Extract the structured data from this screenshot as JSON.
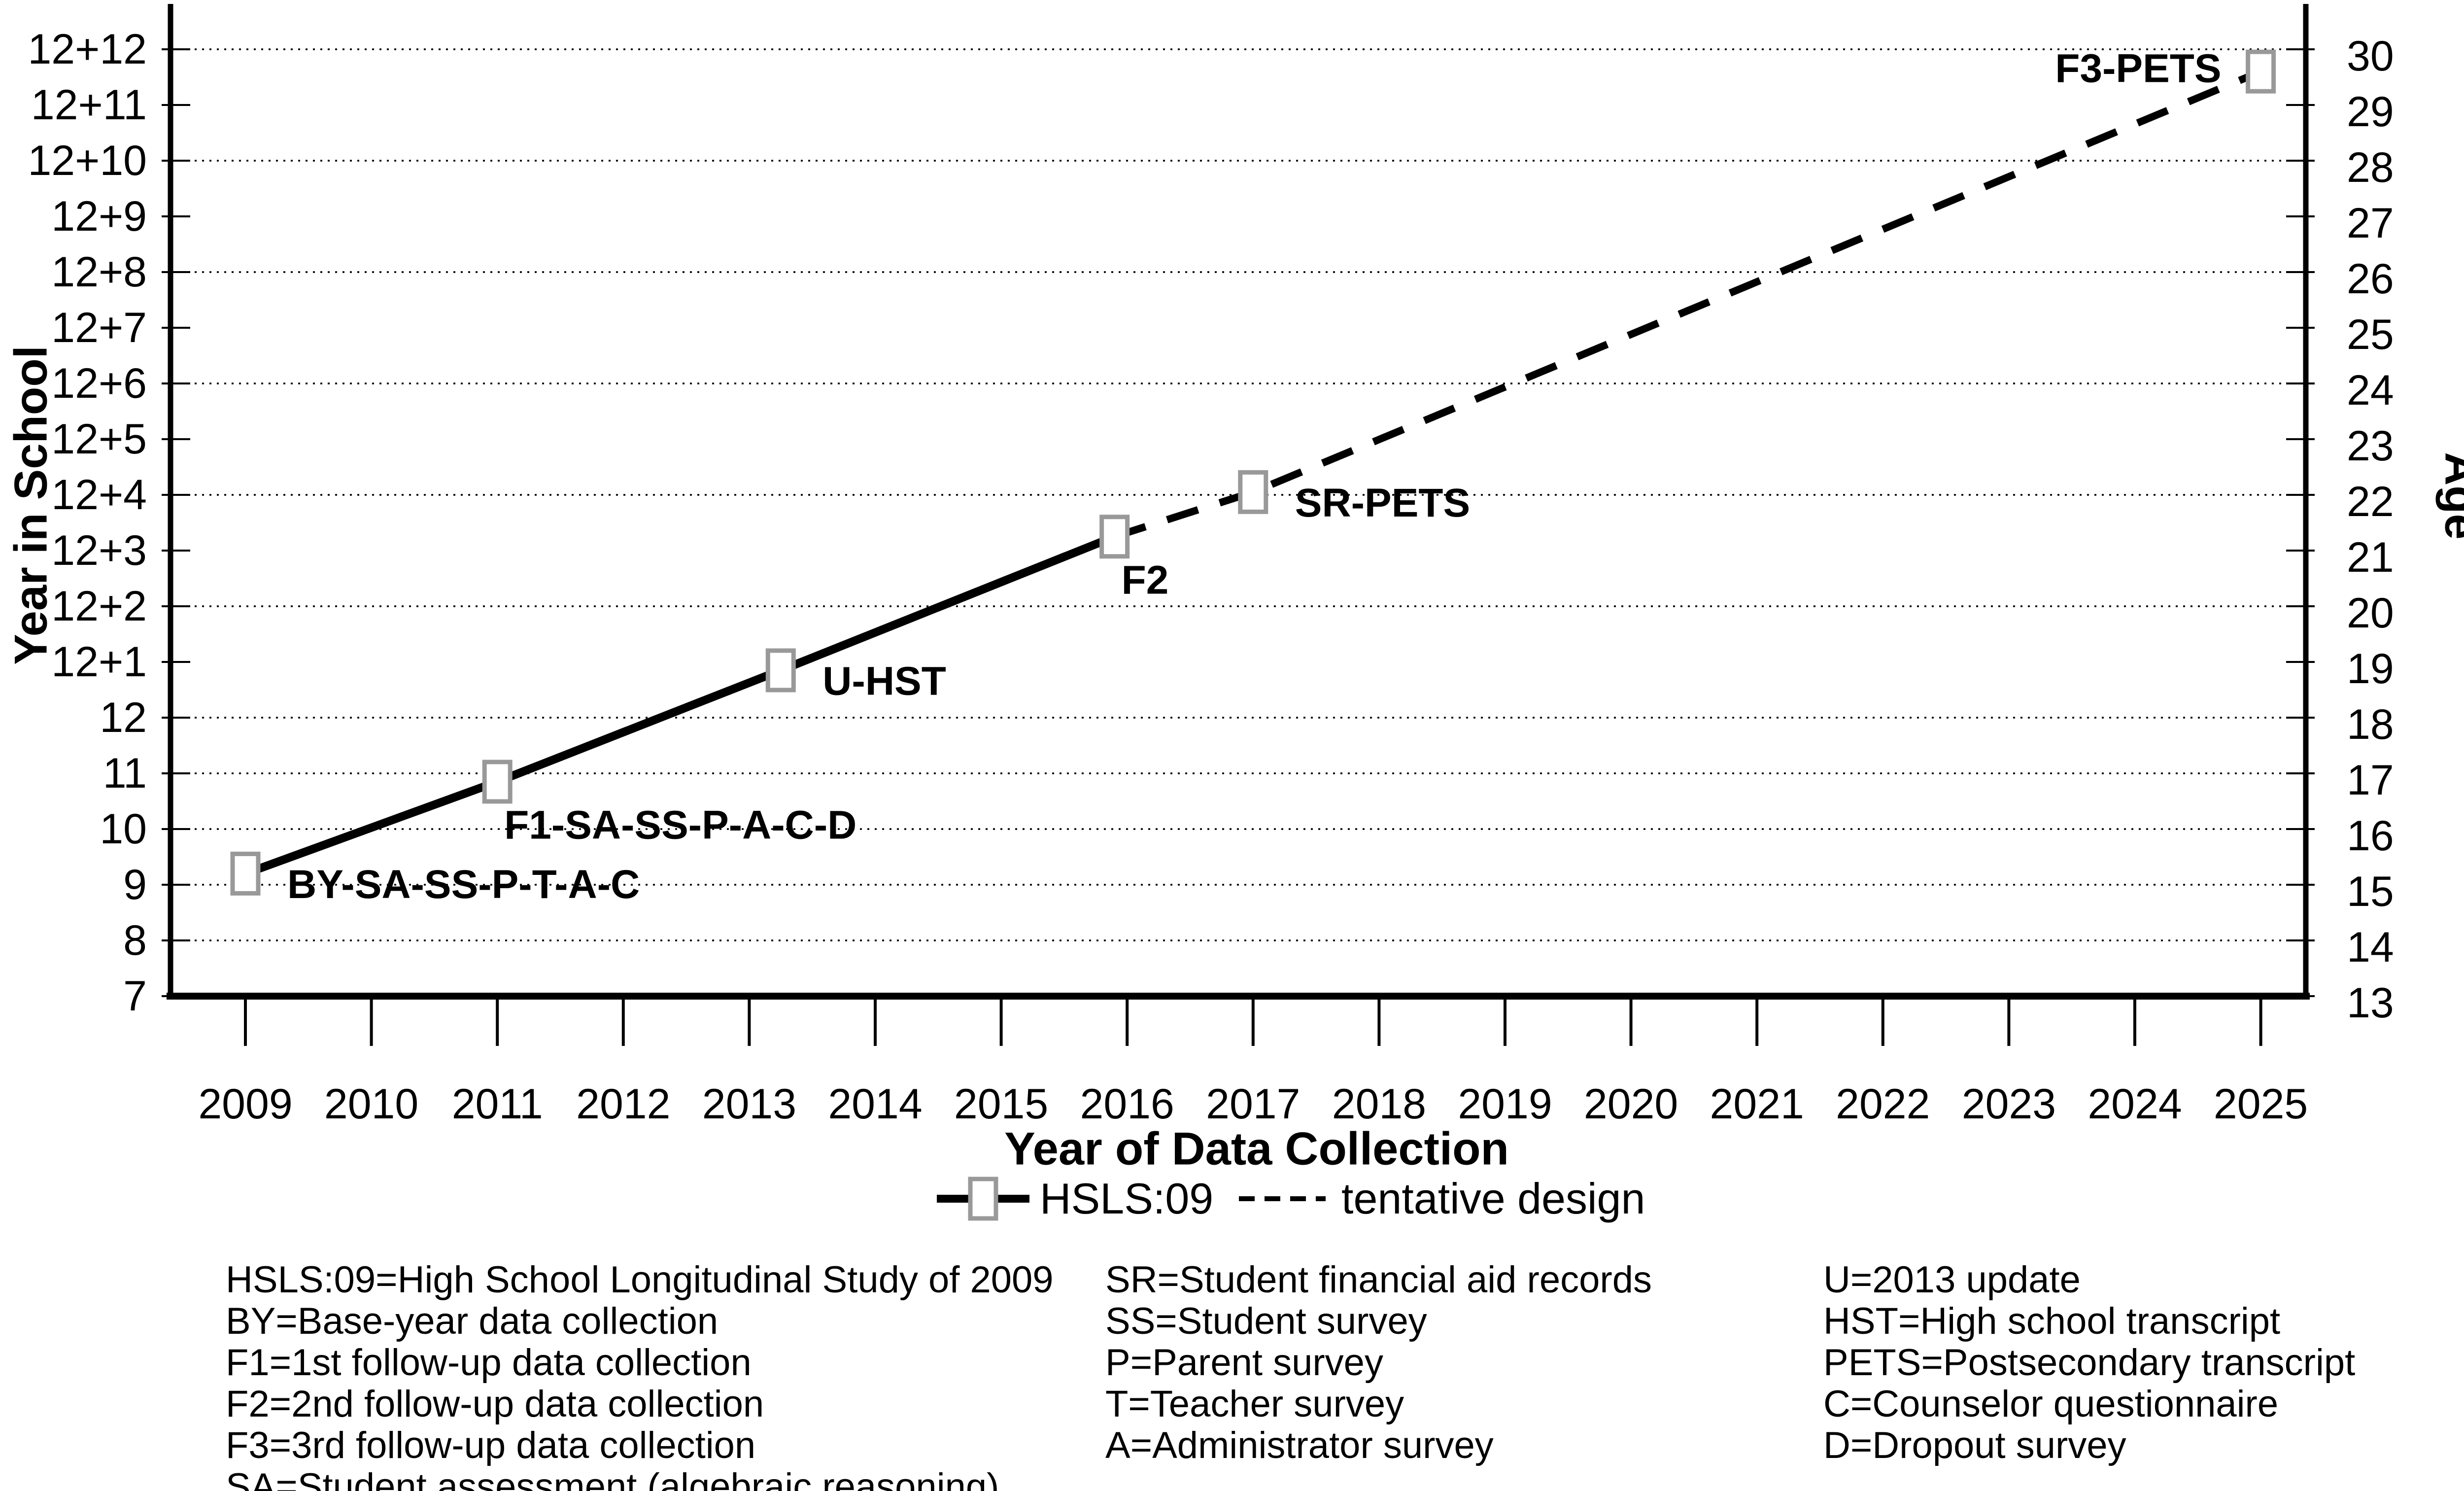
{
  "chart_data": {
    "type": "line",
    "title": "",
    "xlabel": "Year of Data Collection",
    "ylabel_left": "Year in School",
    "ylabel_right": "Age",
    "x_tick_labels": [
      "2009",
      "2010",
      "2011",
      "2012",
      "2013",
      "2014",
      "2015",
      "2016",
      "2017",
      "2018",
      "2019",
      "2020",
      "2021",
      "2022",
      "2023",
      "2024",
      "2025"
    ],
    "left_y_tick_labels_bottom_to_top": [
      "7",
      "8",
      "9",
      "10",
      "11",
      "12",
      "12+1",
      "12+2",
      "12+3",
      "12+4",
      "12+5",
      "12+6",
      "12+7",
      "12+8",
      "12+9",
      "12+10",
      "12+11",
      "12+12"
    ],
    "right_y_tick_labels_bottom_to_top": [
      "13",
      "14",
      "15",
      "16",
      "17",
      "18",
      "19",
      "20",
      "21",
      "22",
      "23",
      "24",
      "25",
      "26",
      "27",
      "28",
      "29",
      "30"
    ],
    "age_axis_range": [
      13,
      30
    ],
    "year_axis_range": [
      2009,
      2025
    ],
    "gridlines": {
      "style": "dotted horizontal",
      "at_ages": [
        14,
        15,
        16,
        17,
        18,
        20,
        22,
        24,
        26,
        28,
        30
      ]
    },
    "marker": {
      "shape": "open square",
      "fill": "#ffffff",
      "stroke": "#999999"
    },
    "line_color": "#000000",
    "series": [
      {
        "name": "HSLS:09",
        "style": "solid",
        "points": [
          {
            "year": 2009.0,
            "age": 15.2,
            "label": "BY-SA-SS-P-T-A-C",
            "label_side": "right"
          },
          {
            "year": 2011.0,
            "age": 16.85,
            "label": "F1-SA-SS-P-A-C-D",
            "label_side": "below-right"
          },
          {
            "year": 2013.25,
            "age": 18.85,
            "label": "U-HST",
            "label_side": "right"
          },
          {
            "year": 2015.9,
            "age": 21.25,
            "label": "F2",
            "label_side": "below-right"
          }
        ]
      },
      {
        "name": "tentative design",
        "style": "dashed",
        "points": [
          {
            "year": 2015.9,
            "age": 21.25,
            "anchor": true
          },
          {
            "year": 2017.0,
            "age": 22.05,
            "label": "SR-PETS",
            "label_side": "right"
          },
          {
            "year": 2025.0,
            "age": 29.6,
            "label": "F3-PETS",
            "label_side": "left"
          }
        ]
      }
    ],
    "legend": [
      {
        "label": "HSLS:09",
        "line_style": "solid",
        "marker": true
      },
      {
        "label": "tentative design",
        "line_style": "dashed",
        "marker": false
      }
    ]
  },
  "key": {
    "columns": [
      [
        "HSLS:09=High School Longitudinal Study of 2009",
        "BY=Base-year data collection",
        "F1=1st follow-up data collection",
        "F2=2nd follow-up data collection",
        "F3=3rd follow-up data collection",
        "SA=Student assessment (algebraic reasoning)"
      ],
      [
        "SR=Student financial aid records",
        "SS=Student survey",
        "P=Parent survey",
        "T=Teacher survey",
        "A=Administrator survey"
      ],
      [
        "U=2013 update",
        "HST=High school transcript",
        "PETS=Postsecondary transcript",
        "C=Counselor questionnaire",
        "D=Dropout survey"
      ]
    ]
  }
}
